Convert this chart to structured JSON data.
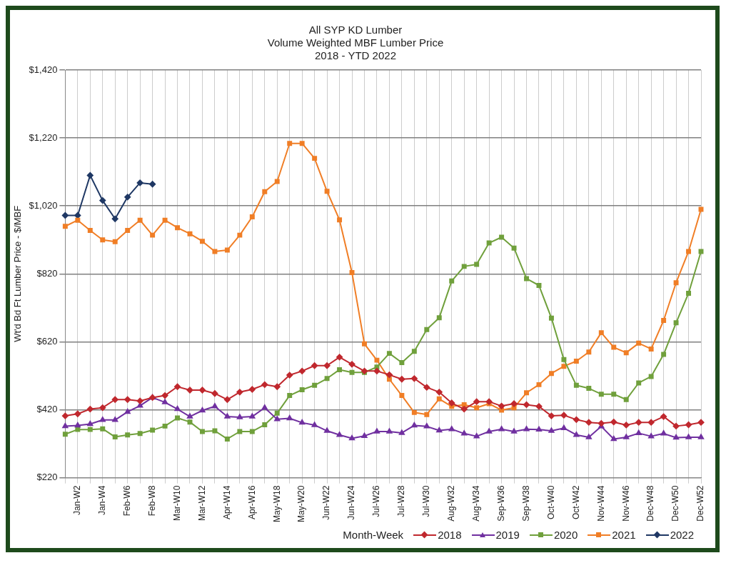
{
  "chart_data": {
    "type": "line",
    "title": [
      "All SYP KD Lumber",
      "Volume Weighted MBF Lumber Price",
      "2018 - YTD 2022"
    ],
    "ylabel": "Wt'd Bd Ft Lumber Price - $/MBF",
    "legend_title": "Month-Week",
    "categories": [
      null,
      "Jan-W2",
      null,
      "Jan-W4",
      null,
      "Feb-W6",
      null,
      "Feb-W8",
      null,
      "Mar-W10",
      null,
      "Mar-W12",
      null,
      "Apr-W14",
      null,
      "Apr-W16",
      null,
      "May-W18",
      null,
      "May-W20",
      null,
      "Jun-W22",
      null,
      "Jun-W24",
      null,
      "Jul-W26",
      null,
      "Jul-W28",
      null,
      "Jul-W30",
      null,
      "Aug-W32",
      null,
      "Aug-W34",
      null,
      "Sep-W36",
      null,
      "Sep-W38",
      null,
      "Oct-W40",
      null,
      "Oct-W42",
      null,
      "Nov-W44",
      null,
      "Nov-W46",
      null,
      "Dec-W48",
      null,
      "Dec-W50",
      null,
      "Dec-W52"
    ],
    "ylim": [
      220,
      1420
    ],
    "yticks": [
      {
        "value": 220,
        "label": "$220"
      },
      {
        "value": 420,
        "label": "$420"
      },
      {
        "value": 620,
        "label": "$620"
      },
      {
        "value": 820,
        "label": "$820"
      },
      {
        "value": 1020,
        "label": "$1,020"
      },
      {
        "value": 1220,
        "label": "$1,220"
      },
      {
        "value": 1420,
        "label": "$1,420"
      }
    ],
    "grid": true,
    "legend": "bottom right",
    "line_style": "solid",
    "series": [
      {
        "name": "2018",
        "color": "#c0282e",
        "marker": "diamond",
        "values": [
          402,
          408,
          422,
          426,
          450,
          450,
          446,
          456,
          462,
          488,
          478,
          478,
          468,
          450,
          472,
          480,
          494,
          488,
          522,
          534,
          550,
          550,
          575,
          554,
          534,
          534,
          523,
          510,
          512,
          486,
          472,
          440,
          422,
          444,
          444,
          431,
          438,
          435,
          430,
          402,
          404,
          391,
          383,
          380,
          384,
          375,
          383,
          383,
          400,
          372,
          376,
          383
        ]
      },
      {
        "name": "2019",
        "color": "#7030a0",
        "marker": "triangle",
        "values": [
          372,
          374,
          378,
          390,
          390,
          414,
          432,
          456,
          442,
          422,
          400,
          418,
          430,
          400,
          398,
          400,
          426,
          392,
          395,
          382,
          375,
          358,
          346,
          336,
          343,
          356,
          356,
          352,
          374,
          371,
          359,
          363,
          350,
          342,
          356,
          363,
          356,
          363,
          362,
          358,
          366,
          346,
          339,
          371,
          334,
          339,
          351,
          342,
          350,
          338,
          339,
          339
        ]
      },
      {
        "name": "2020",
        "color": "#70a03c",
        "marker": "square",
        "values": [
          348,
          362,
          362,
          364,
          340,
          346,
          350,
          360,
          372,
          396,
          384,
          356,
          358,
          334,
          356,
          356,
          376,
          410,
          462,
          479,
          492,
          512,
          538,
          530,
          530,
          546,
          586,
          559,
          592,
          656,
          691,
          799,
          842,
          848,
          911,
          928,
          896,
          806,
          786,
          690,
          568,
          492,
          483,
          466,
          466,
          450,
          499,
          518,
          583,
          676,
          763,
          886
        ]
      },
      {
        "name": "2021",
        "color": "#f07e26",
        "marker": "square",
        "values": [
          960,
          978,
          948,
          920,
          915,
          948,
          978,
          934,
          978,
          956,
          938,
          916,
          886,
          890,
          934,
          988,
          1062,
          1092,
          1204,
          1204,
          1160,
          1063,
          979,
          824,
          614,
          566,
          510,
          462,
          412,
          406,
          452,
          430,
          435,
          426,
          438,
          419,
          426,
          470,
          494,
          527,
          548,
          563,
          590,
          647,
          604,
          588,
          616,
          599,
          683,
          794,
          886,
          1010
        ]
      },
      {
        "name": "2022",
        "color": "#1f3864",
        "marker": "diamond",
        "values": [
          992,
          992,
          1110,
          1036,
          982,
          1046,
          1088,
          1084,
          null,
          null,
          null,
          null,
          null,
          null,
          null,
          null,
          null,
          null,
          null,
          null,
          null,
          null,
          null,
          null,
          null,
          null,
          null,
          null,
          null,
          null,
          null,
          null,
          null,
          null,
          null,
          null,
          null,
          null,
          null,
          null,
          null,
          null,
          null,
          null,
          null,
          null,
          null,
          null,
          null,
          null,
          null,
          null
        ]
      }
    ]
  }
}
